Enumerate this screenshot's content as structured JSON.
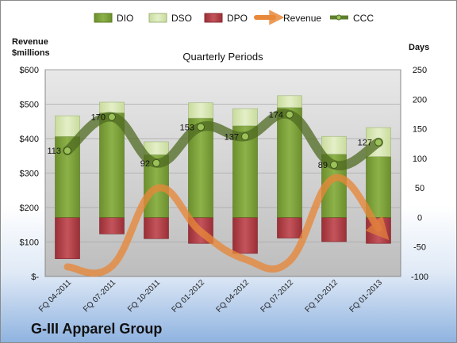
{
  "company_title": "G-III Apparel Group",
  "chart_data": {
    "type": "bar",
    "title": "Quarterly Periods",
    "left_axis_label": [
      "Revenue",
      "$millions"
    ],
    "right_axis_label": "Days",
    "categories": [
      "FQ 04-2011",
      "FQ 07-2011",
      "FQ 10-2011",
      "FQ 01-2012",
      "FQ 04-2012",
      "FQ 07-2012",
      "FQ 10-2012",
      "FQ 01-2013"
    ],
    "left_ylim": [
      0,
      600
    ],
    "left_ticks": [
      "$-",
      "$100",
      "$200",
      "$300",
      "$400",
      "$500",
      "$600"
    ],
    "left_tick_values": [
      0,
      100,
      200,
      300,
      400,
      500,
      600
    ],
    "right_ylim": [
      -100,
      250
    ],
    "right_ticks": [
      "-100",
      "-50",
      "0",
      "50",
      "100",
      "150",
      "200",
      "250"
    ],
    "right_tick_values": [
      -100,
      -50,
      0,
      50,
      100,
      150,
      200,
      250
    ],
    "series": [
      {
        "name": "DIO",
        "type": "stacked-bar",
        "axis": "days",
        "color": "#7fa23a",
        "values": [
          137,
          177,
          106,
          168,
          155,
          186,
          107,
          103
        ]
      },
      {
        "name": "DSO",
        "type": "stacked-bar",
        "axis": "days",
        "color": "#d6e6b0",
        "values": [
          35,
          18,
          22,
          26,
          29,
          20,
          30,
          49
        ]
      },
      {
        "name": "DPO",
        "type": "stacked-bar",
        "axis": "days",
        "color": "#b8434b",
        "values": [
          -70,
          -28,
          -36,
          -44,
          -61,
          -35,
          -41,
          -44
        ]
      },
      {
        "name": "Revenue",
        "type": "line",
        "axis": "revenue",
        "color": "#e8883a",
        "values": [
          28,
          30,
          255,
          130,
          50,
          45,
          285,
          140
        ]
      },
      {
        "name": "CCC",
        "type": "line",
        "axis": "days",
        "color": "#5e7f2e",
        "values": [
          113,
          170,
          92,
          153,
          137,
          174,
          89,
          127
        ]
      }
    ],
    "data_labels": [
      "113",
      "170",
      "92",
      "153",
      "137",
      "174",
      "89",
      "127"
    ],
    "legend_position": "top"
  }
}
